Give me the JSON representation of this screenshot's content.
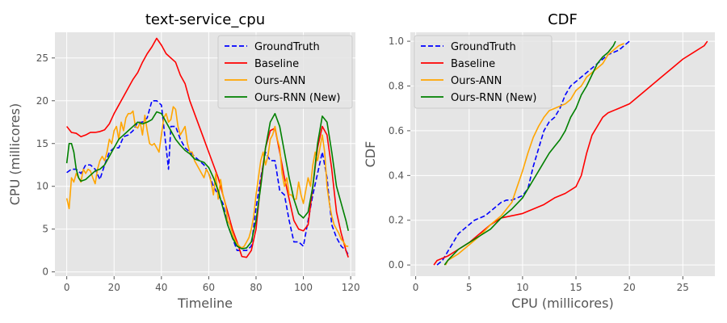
{
  "chart_data": [
    {
      "type": "line",
      "title": "text-service_cpu",
      "xlabel": "Timeline",
      "ylabel": "CPU (millicores)",
      "xlim": [
        -5,
        122
      ],
      "ylim": [
        -0.5,
        28
      ],
      "xticks": [
        0,
        20,
        40,
        60,
        80,
        100,
        120
      ],
      "yticks": [
        0,
        5,
        10,
        15,
        20,
        25
      ],
      "grid": true,
      "legend": "top-right",
      "series": [
        {
          "name": "GroundTruth",
          "color": "#0000ff",
          "dash": "dashed",
          "x": [
            0,
            2,
            4,
            6,
            8,
            10,
            12,
            14,
            16,
            18,
            20,
            22,
            24,
            26,
            28,
            30,
            32,
            34,
            36,
            38,
            40,
            42,
            43,
            44,
            46,
            48,
            50,
            52,
            54,
            56,
            58,
            60,
            62,
            64,
            66,
            68,
            70,
            72,
            74,
            76,
            78,
            80,
            82,
            84,
            86,
            88,
            90,
            92,
            94,
            96,
            98,
            100,
            102,
            104,
            106,
            108,
            110,
            112,
            114,
            116,
            118,
            119
          ],
          "y": [
            11.6,
            12,
            12,
            11.5,
            12.5,
            12.5,
            12,
            10.8,
            12.5,
            14,
            14.5,
            14.5,
            15.8,
            16,
            16.5,
            17.5,
            17.5,
            18,
            20,
            20,
            19.5,
            14.5,
            12,
            17,
            17,
            15.5,
            14.5,
            14,
            13.5,
            13,
            12.5,
            11.5,
            10,
            9,
            8,
            5.5,
            4,
            2.5,
            2.5,
            2.5,
            3,
            7.5,
            11,
            14,
            13,
            13,
            9.5,
            9,
            6,
            3.5,
            3.5,
            3,
            6,
            9,
            11.5,
            14,
            11,
            5.5,
            4,
            3,
            2.5,
            2
          ]
        },
        {
          "name": "Baseline",
          "color": "#ff0000",
          "dash": "solid",
          "x": [
            0,
            2,
            4,
            6,
            8,
            10,
            12,
            14,
            16,
            18,
            20,
            22,
            24,
            26,
            28,
            30,
            32,
            34,
            36,
            38,
            40,
            42,
            44,
            46,
            48,
            50,
            52,
            54,
            56,
            58,
            60,
            62,
            64,
            66,
            68,
            70,
            72,
            74,
            76,
            78,
            80,
            82,
            84,
            86,
            88,
            90,
            92,
            94,
            96,
            98,
            100,
            102,
            104,
            106,
            108,
            110,
            112,
            114,
            116,
            118,
            119
          ],
          "y": [
            17,
            16.3,
            16.2,
            15.8,
            16,
            16.3,
            16.3,
            16.4,
            16.6,
            17.3,
            18.5,
            19.5,
            20.5,
            21.5,
            22.5,
            23.3,
            24.5,
            25.5,
            26.3,
            27.3,
            26.5,
            25.5,
            25,
            24.5,
            23,
            22,
            20,
            18.5,
            17,
            15.5,
            14,
            12.5,
            11,
            9,
            7,
            5,
            3.5,
            1.8,
            1.7,
            2.5,
            5,
            10.5,
            14.5,
            16.5,
            16.8,
            14,
            11,
            8.5,
            6,
            5,
            4.8,
            5.5,
            10,
            14.5,
            17,
            16,
            12,
            7,
            4.5,
            2.5,
            1.7
          ]
        },
        {
          "name": "Ours-ANN",
          "color": "#ffa500",
          "dash": "solid",
          "x": [
            0,
            1,
            2,
            3,
            4,
            5,
            6,
            7,
            8,
            9,
            10,
            11,
            12,
            13,
            14,
            15,
            16,
            17,
            18,
            19,
            20,
            21,
            22,
            23,
            24,
            25,
            26,
            27,
            28,
            29,
            30,
            31,
            32,
            33,
            34,
            35,
            36,
            37,
            38,
            39,
            40,
            41,
            42,
            43,
            44,
            45,
            46,
            47,
            48,
            49,
            50,
            51,
            52,
            53,
            54,
            55,
            56,
            57,
            58,
            59,
            60,
            61,
            62,
            63,
            64,
            65,
            66,
            67,
            68,
            69,
            70,
            71,
            72,
            73,
            74,
            75,
            76,
            77,
            78,
            79,
            80,
            81,
            82,
            83,
            84,
            85,
            86,
            87,
            88,
            89,
            90,
            91,
            92,
            93,
            94,
            95,
            96,
            97,
            98,
            99,
            100,
            101,
            102,
            103,
            104,
            105,
            106,
            107,
            108,
            109,
            110,
            111,
            112,
            113,
            114,
            115,
            116,
            117,
            118,
            119
          ],
          "y": [
            8.6,
            7.4,
            11,
            10.5,
            11.5,
            11,
            10.5,
            12,
            11.5,
            12,
            11.8,
            11,
            10.3,
            12,
            13,
            13.5,
            13,
            14,
            15.5,
            15,
            16.5,
            17,
            15.5,
            17.5,
            16.5,
            18,
            18.5,
            18.5,
            18.8,
            17,
            16.8,
            17.5,
            16,
            18.3,
            16.5,
            15,
            14.8,
            15,
            14.5,
            14,
            16,
            18,
            18.5,
            17.5,
            17.8,
            19.3,
            19,
            17,
            16,
            16.5,
            17,
            15,
            14,
            14,
            13,
            12.5,
            12,
            11.5,
            11,
            12,
            11.5,
            10.5,
            9,
            11.5,
            8.5,
            10.8,
            9,
            8,
            6,
            5.5,
            4.5,
            3.8,
            3.3,
            3,
            2.8,
            3,
            3.5,
            4,
            5,
            6.5,
            9,
            11,
            13,
            14,
            12.5,
            13.5,
            15.5,
            16,
            17,
            15.5,
            14.5,
            11.5,
            10,
            11,
            9,
            9,
            8.5,
            8.5,
            10.5,
            9,
            8,
            9.5,
            11,
            10,
            12.5,
            14,
            13,
            14.5,
            16,
            14,
            10,
            8,
            6.5,
            5.5,
            5,
            4.5,
            3.8,
            3.5,
            3,
            3
          ]
        },
        {
          "name": "Ours-RNN (New)",
          "color": "#008000",
          "dash": "solid",
          "x": [
            0,
            1,
            2,
            3,
            4,
            5,
            6,
            8,
            10,
            12,
            14,
            16,
            18,
            20,
            22,
            24,
            26,
            28,
            30,
            32,
            34,
            36,
            38,
            40,
            42,
            44,
            46,
            48,
            50,
            52,
            54,
            56,
            58,
            60,
            62,
            64,
            66,
            68,
            70,
            72,
            74,
            76,
            78,
            80,
            82,
            84,
            86,
            88,
            90,
            92,
            94,
            96,
            98,
            100,
            102,
            104,
            106,
            108,
            110,
            112,
            114,
            116,
            118,
            119
          ],
          "y": [
            12.7,
            15,
            15,
            14,
            12,
            11,
            10.6,
            10.8,
            11.3,
            11.8,
            12,
            12.5,
            13.5,
            14.5,
            15.5,
            16,
            16.5,
            17,
            17.5,
            17.3,
            17.5,
            17.8,
            18.7,
            18.5,
            17.5,
            16.5,
            15.5,
            14.8,
            14.2,
            13.8,
            13.2,
            13,
            12.8,
            12.2,
            11,
            9.5,
            7.5,
            5.5,
            4,
            3,
            2.7,
            2.8,
            3.5,
            6,
            10,
            14.5,
            17.5,
            18.5,
            17,
            14,
            11,
            8.5,
            6.8,
            6.3,
            7,
            10,
            15,
            18.2,
            17.5,
            14,
            10,
            8,
            6,
            4.8
          ]
        }
      ]
    },
    {
      "type": "line",
      "title": "CDF",
      "xlabel": "CPU (millicores)",
      "ylabel": "CDF",
      "xlim": [
        -0.5,
        28
      ],
      "ylim": [
        -0.05,
        1.04
      ],
      "xticks": [
        0,
        5,
        10,
        15,
        20,
        25
      ],
      "yticks": [
        0.0,
        0.2,
        0.4,
        0.6,
        0.8,
        1.0
      ],
      "ytick_labels": [
        "0.0",
        "0.2",
        "0.4",
        "0.6",
        "0.8",
        "1.0"
      ],
      "grid": true,
      "legend": "top-left",
      "series": [
        {
          "name": "GroundTruth",
          "color": "#0000ff",
          "dash": "dashed",
          "x": [
            2,
            2.5,
            3,
            3.5,
            4,
            4.5,
            5,
            5.5,
            6,
            6.5,
            7,
            7.5,
            8,
            8.5,
            9,
            9.5,
            10,
            10.5,
            11,
            11.5,
            12,
            12.5,
            13,
            13.5,
            14,
            14.5,
            15,
            15.5,
            16,
            16.5,
            17,
            17.5,
            18,
            19,
            20
          ],
          "y": [
            0,
            0.02,
            0.06,
            0.1,
            0.14,
            0.16,
            0.18,
            0.2,
            0.21,
            0.22,
            0.24,
            0.26,
            0.28,
            0.29,
            0.29,
            0.3,
            0.31,
            0.34,
            0.44,
            0.52,
            0.6,
            0.64,
            0.66,
            0.7,
            0.76,
            0.8,
            0.82,
            0.84,
            0.86,
            0.88,
            0.9,
            0.92,
            0.94,
            0.96,
            1.0
          ]
        },
        {
          "name": "Baseline",
          "color": "#ff0000",
          "dash": "solid",
          "x": [
            1.7,
            2,
            3,
            4,
            5,
            6,
            7,
            8,
            9,
            10,
            11,
            12,
            13,
            14,
            15,
            15.5,
            16,
            16.5,
            17,
            17.5,
            18,
            19,
            20,
            21,
            22,
            23,
            24,
            25,
            26,
            27,
            27.3
          ],
          "y": [
            0,
            0.02,
            0.04,
            0.07,
            0.1,
            0.14,
            0.18,
            0.21,
            0.22,
            0.23,
            0.25,
            0.27,
            0.3,
            0.32,
            0.35,
            0.4,
            0.5,
            0.58,
            0.62,
            0.66,
            0.68,
            0.7,
            0.72,
            0.76,
            0.8,
            0.84,
            0.88,
            0.92,
            0.95,
            0.98,
            1.0
          ]
        },
        {
          "name": "Ours-ANN",
          "color": "#ffa500",
          "dash": "solid",
          "x": [
            2.8,
            3,
            4,
            5,
            6,
            7,
            8,
            9,
            9.5,
            10,
            10.5,
            11,
            11.5,
            12,
            12.5,
            13,
            13.5,
            14,
            14.5,
            15,
            15.5,
            16,
            16.5,
            17,
            17.5,
            18,
            18.5,
            19,
            19.5
          ],
          "y": [
            0,
            0.02,
            0.05,
            0.09,
            0.13,
            0.18,
            0.22,
            0.28,
            0.35,
            0.42,
            0.5,
            0.57,
            0.62,
            0.66,
            0.69,
            0.7,
            0.71,
            0.72,
            0.74,
            0.78,
            0.8,
            0.84,
            0.86,
            0.88,
            0.9,
            0.94,
            0.96,
            0.98,
            0.99
          ]
        },
        {
          "name": "Ours-RNN (New)",
          "color": "#008000",
          "dash": "solid",
          "x": [
            2.7,
            3,
            4,
            5,
            6,
            7,
            8,
            9,
            10,
            10.5,
            11,
            11.5,
            12,
            12.5,
            13,
            13.5,
            14,
            14.5,
            15,
            15.5,
            16,
            16.5,
            17,
            17.5,
            18,
            18.5,
            18.7
          ],
          "y": [
            0,
            0.02,
            0.07,
            0.1,
            0.13,
            0.16,
            0.21,
            0.25,
            0.3,
            0.34,
            0.38,
            0.42,
            0.46,
            0.5,
            0.53,
            0.56,
            0.6,
            0.66,
            0.7,
            0.76,
            0.8,
            0.85,
            0.9,
            0.93,
            0.95,
            0.98,
            1.0
          ]
        }
      ]
    }
  ]
}
